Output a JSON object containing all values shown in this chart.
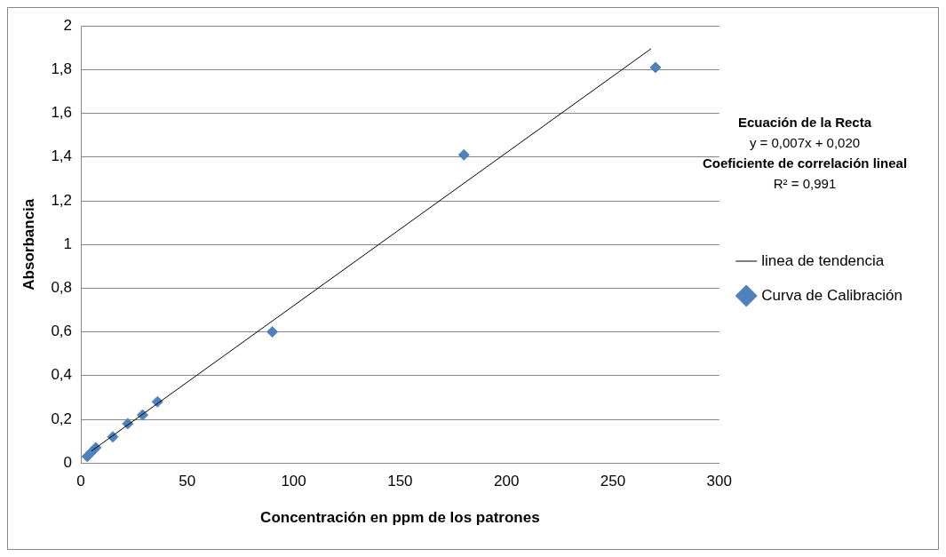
{
  "chart_data": {
    "type": "scatter",
    "xlabel": "Concentración en ppm de los patrones",
    "ylabel": "Absorbancia",
    "series": [
      {
        "name": "Curva de Calibración",
        "type": "scatter",
        "color": "#4f81bd",
        "x": [
          3,
          5,
          7,
          15,
          22,
          29,
          36,
          90,
          180,
          270
        ],
        "values": [
          0.03,
          0.05,
          0.07,
          0.12,
          0.18,
          0.22,
          0.28,
          0.6,
          1.41,
          1.81
        ],
        "marker": "diamond"
      },
      {
        "name": "linea de tendencia",
        "type": "line",
        "color": "#000000",
        "x": [
          5,
          268
        ],
        "values": [
          0.055,
          1.896
        ],
        "marker": "none"
      }
    ],
    "xlim": [
      0,
      300
    ],
    "xticks": [
      0,
      50,
      100,
      150,
      200,
      250,
      300
    ],
    "ylim": [
      0,
      2
    ],
    "yticks": [
      0,
      {
        "value": 0.2,
        "label": "0,2"
      },
      {
        "value": 0.4,
        "label": "0,4"
      },
      {
        "value": 0.6,
        "label": "0,6"
      },
      {
        "value": 0.8,
        "label": "0,8"
      },
      1,
      {
        "value": 1.2,
        "label": "1,2"
      },
      {
        "value": 1.4,
        "label": "1,4"
      },
      {
        "value": 1.6,
        "label": "1,6"
      },
      {
        "value": 1.8,
        "label": "1,8"
      },
      2
    ],
    "grid": "y",
    "legend": "right",
    "annotations": [
      "Ecuación de la Recta",
      "y = 0,007x + 0,020",
      "Coeficiente de correlación lineal",
      "R² = 0,991"
    ]
  }
}
